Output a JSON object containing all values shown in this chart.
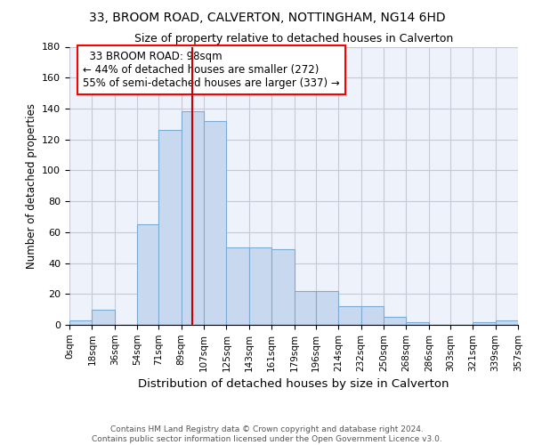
{
  "title": "33, BROOM ROAD, CALVERTON, NOTTINGHAM, NG14 6HD",
  "subtitle": "Size of property relative to detached houses in Calverton",
  "xlabel": "Distribution of detached houses by size in Calverton",
  "ylabel": "Number of detached properties",
  "footer_line1": "Contains HM Land Registry data © Crown copyright and database right 2024.",
  "footer_line2": "Contains public sector information licensed under the Open Government Licence v3.0.",
  "annotation_line1": "33 BROOM ROAD: 98sqm",
  "annotation_line2": "← 44% of detached houses are smaller (272)",
  "annotation_line3": "55% of semi-detached houses are larger (337) →",
  "property_size": 98,
  "bar_edges": [
    0,
    18,
    36,
    54,
    71,
    89,
    107,
    125,
    143,
    161,
    179,
    196,
    214,
    232,
    250,
    268,
    286,
    303,
    321,
    339,
    357
  ],
  "bar_heights": [
    3,
    10,
    0,
    65,
    126,
    138,
    132,
    50,
    50,
    49,
    22,
    22,
    12,
    12,
    5,
    2,
    0,
    0,
    2,
    3
  ],
  "bar_color": "#c8d9ef",
  "bar_edge_color": "#7badd4",
  "vline_color": "#cc0000",
  "grid_color": "#c8c8d8",
  "background_color": "#eef2fb",
  "ylim": [
    0,
    180
  ],
  "yticks": [
    0,
    20,
    40,
    60,
    80,
    100,
    120,
    140,
    160,
    180
  ]
}
